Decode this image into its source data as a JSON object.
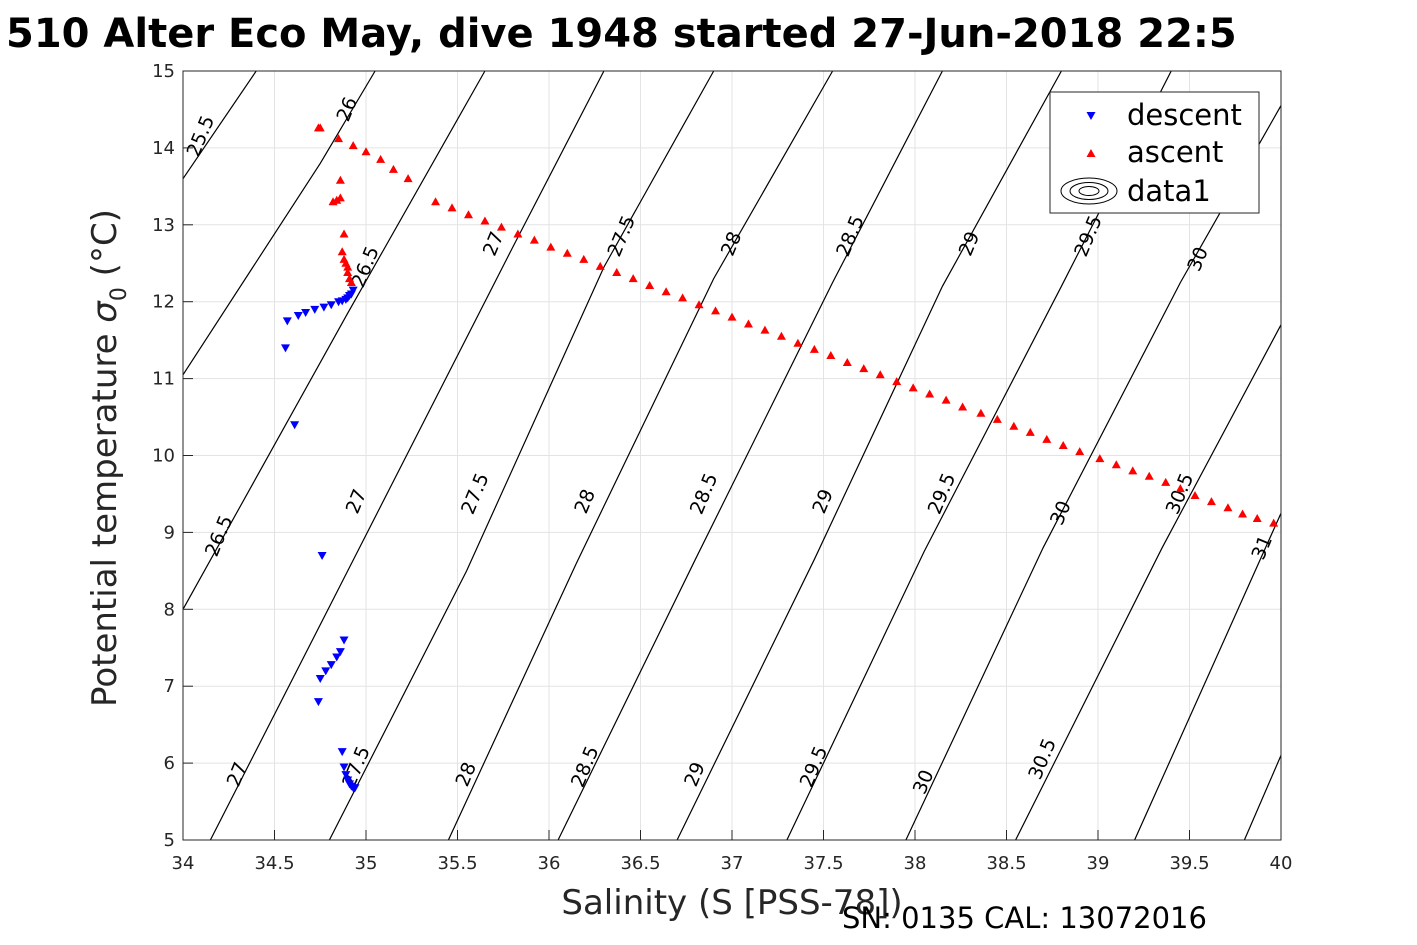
{
  "chart_data": {
    "type": "scatter",
    "title": "510 Alter Eco May, dive 1948 started 27-Jun-2018 22:5",
    "xlabel": "Salinity (S [PSS-78])",
    "ylabel_main": "Potential temperature ",
    "ylabel_symbol": "σ",
    "ylabel_subscript": "0",
    "ylabel_unit": " (°C)",
    "xlim": [
      34,
      40
    ],
    "ylim": [
      5,
      15
    ],
    "xticks": [
      "34",
      "34.5",
      "35",
      "35.5",
      "36",
      "36.5",
      "37",
      "37.5",
      "38",
      "38.5",
      "39",
      "39.5",
      "40"
    ],
    "yticks": [
      "5",
      "6",
      "7",
      "8",
      "9",
      "10",
      "11",
      "12",
      "13",
      "14",
      "15"
    ],
    "grid": true,
    "legend_position": "top-right",
    "legend": [
      {
        "label": "descent",
        "marker": "triangle-down",
        "color": "#0000ff"
      },
      {
        "label": "ascent",
        "marker": "triangle-up",
        "color": "#ff0000"
      },
      {
        "label": "data1",
        "marker": "contour",
        "color": "#000000"
      }
    ],
    "footer_text": "SN: 0135  CAL: 13072016",
    "isopycnals": [
      {
        "level": "25.5",
        "points": [
          [
            34.0,
            13.6
          ],
          [
            34.4,
            15.0
          ]
        ]
      },
      {
        "level": "26",
        "points": [
          [
            34.0,
            11.05
          ],
          [
            34.75,
            13.8
          ],
          [
            35.05,
            15.0
          ]
        ]
      },
      {
        "level": "26.5",
        "points": [
          [
            34.0,
            8.0
          ],
          [
            34.9,
            11.85
          ],
          [
            35.65,
            15.0
          ]
        ]
      },
      {
        "level": "27",
        "points": [
          [
            34.15,
            5.0
          ],
          [
            34.9,
            8.5
          ],
          [
            35.8,
            12.7
          ],
          [
            36.3,
            15.0
          ]
        ]
      },
      {
        "level": "27.5",
        "points": [
          [
            34.8,
            5.0
          ],
          [
            35.55,
            8.5
          ],
          [
            36.3,
            12.45
          ],
          [
            36.9,
            15.0
          ]
        ]
      },
      {
        "level": "28",
        "points": [
          [
            35.45,
            5.0
          ],
          [
            36.15,
            8.6
          ],
          [
            36.9,
            12.3
          ],
          [
            37.55,
            15.0
          ]
        ]
      },
      {
        "level": "28.5",
        "points": [
          [
            36.05,
            5.0
          ],
          [
            36.8,
            8.65
          ],
          [
            37.55,
            12.25
          ],
          [
            38.15,
            15.0
          ]
        ]
      },
      {
        "level": "29",
        "points": [
          [
            36.7,
            5.0
          ],
          [
            37.45,
            8.65
          ],
          [
            38.15,
            12.2
          ],
          [
            38.8,
            15.0
          ]
        ]
      },
      {
        "level": "29.5",
        "points": [
          [
            37.3,
            5.0
          ],
          [
            38.05,
            8.75
          ],
          [
            38.8,
            12.2
          ],
          [
            39.4,
            15.0
          ]
        ]
      },
      {
        "level": "30",
        "points": [
          [
            37.95,
            5.0
          ],
          [
            38.7,
            8.8
          ],
          [
            39.45,
            12.25
          ],
          [
            40.0,
            14.55
          ]
        ]
      },
      {
        "level": "30.5",
        "points": [
          [
            38.55,
            5.0
          ],
          [
            39.35,
            8.8
          ],
          [
            40.0,
            11.7
          ]
        ]
      },
      {
        "level": "31",
        "points": [
          [
            39.2,
            5.0
          ],
          [
            40.0,
            9.25
          ]
        ]
      },
      {
        "level": "",
        "points": [
          [
            39.8,
            5.0
          ],
          [
            40.0,
            6.1
          ]
        ]
      }
    ],
    "contour_labels": [
      {
        "text": "25.5",
        "x": 34.1,
        "y": 14.15
      },
      {
        "text": "26",
        "x": 34.9,
        "y": 14.5
      },
      {
        "text": "26.5",
        "x": 35.0,
        "y": 12.45
      },
      {
        "text": "27",
        "x": 35.7,
        "y": 12.75
      },
      {
        "text": "27.5",
        "x": 36.4,
        "y": 12.85
      },
      {
        "text": "28",
        "x": 37.0,
        "y": 12.75
      },
      {
        "text": "28.5",
        "x": 37.65,
        "y": 12.85
      },
      {
        "text": "29",
        "x": 38.3,
        "y": 12.75
      },
      {
        "text": "29.5",
        "x": 38.95,
        "y": 12.85
      },
      {
        "text": "30",
        "x": 39.55,
        "y": 12.55
      },
      {
        "text": "26.5",
        "x": 34.2,
        "y": 8.95
      },
      {
        "text": "27",
        "x": 34.95,
        "y": 9.4
      },
      {
        "text": "27.5",
        "x": 35.6,
        "y": 9.5
      },
      {
        "text": "28",
        "x": 36.2,
        "y": 9.4
      },
      {
        "text": "28.5",
        "x": 36.85,
        "y": 9.5
      },
      {
        "text": "29",
        "x": 37.5,
        "y": 9.4
      },
      {
        "text": "29.5",
        "x": 38.15,
        "y": 9.5
      },
      {
        "text": "30",
        "x": 38.8,
        "y": 9.25
      },
      {
        "text": "30.5",
        "x": 39.45,
        "y": 9.5
      },
      {
        "text": "31",
        "x": 39.9,
        "y": 8.8
      },
      {
        "text": "27",
        "x": 34.3,
        "y": 5.85
      },
      {
        "text": "27.5",
        "x": 34.95,
        "y": 5.95
      },
      {
        "text": "28",
        "x": 35.55,
        "y": 5.85
      },
      {
        "text": "28.5",
        "x": 36.2,
        "y": 5.95
      },
      {
        "text": "29",
        "x": 36.8,
        "y": 5.85
      },
      {
        "text": "29.5",
        "x": 37.45,
        "y": 5.95
      },
      {
        "text": "30",
        "x": 38.05,
        "y": 5.75
      },
      {
        "text": "30.5",
        "x": 38.7,
        "y": 6.05
      }
    ],
    "series": [
      {
        "name": "descent",
        "marker": "triangle-down",
        "color": "#0000ff",
        "x": [
          34.57,
          34.63,
          34.67,
          34.72,
          34.77,
          34.81,
          34.85,
          34.87,
          34.89,
          34.9,
          34.91,
          34.92,
          34.93,
          34.56,
          34.61,
          34.76,
          34.88,
          34.86,
          34.84,
          34.81,
          34.78,
          34.75,
          34.74,
          34.87,
          34.88,
          34.89,
          34.9,
          34.91,
          34.92,
          34.93,
          34.94
        ],
        "y": [
          11.75,
          11.82,
          11.86,
          11.9,
          11.93,
          11.96,
          12.0,
          12.01,
          12.03,
          12.05,
          12.08,
          12.1,
          12.15,
          11.4,
          10.4,
          8.7,
          7.6,
          7.45,
          7.38,
          7.28,
          7.2,
          7.1,
          6.8,
          6.15,
          5.95,
          5.85,
          5.78,
          5.73,
          5.7,
          5.68,
          5.68
        ]
      },
      {
        "name": "ascent",
        "marker": "triangle-up",
        "color": "#ff0000",
        "x": [
          39.96,
          39.87,
          39.79,
          39.71,
          39.62,
          39.53,
          39.45,
          39.37,
          39.28,
          39.19,
          39.1,
          39.01,
          38.9,
          38.81,
          38.72,
          38.63,
          38.54,
          38.45,
          38.36,
          38.26,
          38.17,
          38.08,
          37.99,
          37.9,
          37.81,
          37.72,
          37.63,
          37.54,
          37.45,
          37.36,
          37.27,
          37.18,
          37.09,
          37.0,
          36.91,
          36.82,
          36.73,
          36.64,
          36.55,
          36.46,
          36.37,
          36.28,
          36.19,
          36.1,
          36.01,
          35.92,
          35.83,
          35.74,
          35.65,
          35.56,
          35.47,
          35.38,
          35.23,
          35.15,
          35.08,
          35.0,
          34.93,
          34.85,
          34.74,
          34.75,
          34.92,
          34.91,
          34.9,
          34.9,
          34.89,
          34.88,
          34.87,
          34.88,
          34.86,
          34.84,
          34.82,
          34.86
        ],
        "y": [
          9.12,
          9.18,
          9.24,
          9.32,
          9.4,
          9.48,
          9.57,
          9.65,
          9.73,
          9.8,
          9.88,
          9.96,
          10.05,
          10.13,
          10.21,
          10.3,
          10.38,
          10.47,
          10.55,
          10.63,
          10.72,
          10.8,
          10.88,
          10.96,
          11.05,
          11.13,
          11.21,
          11.3,
          11.38,
          11.46,
          11.55,
          11.63,
          11.71,
          11.8,
          11.88,
          11.96,
          12.05,
          12.13,
          12.21,
          12.3,
          12.38,
          12.46,
          12.55,
          12.63,
          12.71,
          12.8,
          12.88,
          12.97,
          13.05,
          13.13,
          13.22,
          13.3,
          13.6,
          13.72,
          13.85,
          13.95,
          14.03,
          14.12,
          14.26,
          14.26,
          12.25,
          12.3,
          12.38,
          12.45,
          12.5,
          12.55,
          12.65,
          12.88,
          13.35,
          13.32,
          13.3,
          13.58
        ]
      }
    ]
  }
}
